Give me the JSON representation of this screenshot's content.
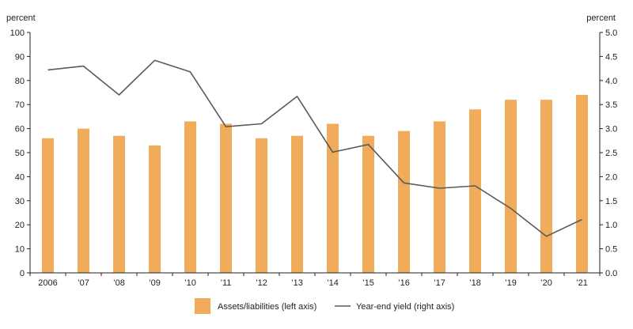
{
  "chart_data": {
    "type": "bar",
    "title": "",
    "categories": [
      "2006",
      "’07",
      "’08",
      "’09",
      "’10",
      "’11",
      "’12",
      "’13",
      "’14",
      "’15",
      "’16",
      "’17",
      "’18",
      "’19",
      "’20",
      "’21"
    ],
    "series": [
      {
        "name": "Assets/liabilities (left axis)",
        "type": "bar",
        "axis": "left",
        "values": [
          56,
          60,
          57,
          53,
          63,
          62,
          56,
          57,
          62,
          57,
          59,
          63,
          68,
          72,
          72,
          74
        ]
      },
      {
        "name": "Year-end yield (right axis)",
        "type": "line",
        "axis": "right",
        "values": [
          4.22,
          4.3,
          3.7,
          4.42,
          4.18,
          3.04,
          3.1,
          3.67,
          2.51,
          2.67,
          1.87,
          1.76,
          1.81,
          1.34,
          0.76,
          1.11
        ]
      }
    ],
    "left_axis": {
      "label": "percent",
      "ylim": [
        0,
        100
      ],
      "ticks": [
        "0",
        "10",
        "20",
        "30",
        "40",
        "50",
        "60",
        "70",
        "80",
        "90",
        "100"
      ]
    },
    "right_axis": {
      "label": "percent",
      "ylim": [
        0,
        5
      ],
      "ticks": [
        "0.0",
        "0.5",
        "1.0",
        "1.5",
        "2.0",
        "2.5",
        "3.0",
        "3.5",
        "4.0",
        "4.5",
        "5.0"
      ]
    },
    "grid": false,
    "legend_position": "bottom-center",
    "colors": {
      "bar": "#f0ac5a",
      "line": "#5a5a5a",
      "axis": "#222222"
    }
  }
}
